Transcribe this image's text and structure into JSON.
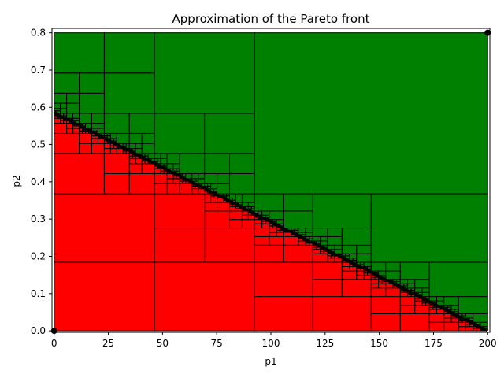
{
  "chart_data": {
    "type": "rectangle-partition",
    "title": "Approximation of the Pareto front",
    "xlabel": "p1",
    "ylabel": "p2",
    "xlim": [
      -1,
      201
    ],
    "ylim": [
      -0.004,
      0.812
    ],
    "xticks": [
      0,
      25,
      50,
      75,
      100,
      125,
      150,
      175,
      200
    ],
    "yticks": [
      0.0,
      0.1,
      0.2,
      0.3,
      0.4,
      0.5,
      0.6,
      0.7,
      0.8
    ],
    "ytick_labels": [
      "0.0",
      "0.1",
      "0.2",
      "0.3",
      "0.4",
      "0.5",
      "0.6",
      "0.7",
      "0.8"
    ],
    "domain": {
      "x": [
        0,
        200
      ],
      "y": [
        0,
        0.8
      ]
    },
    "front": {
      "x": [
        0,
        200
      ],
      "y": [
        0.585,
        0.0
      ]
    },
    "region_colors": {
      "infeasible": "#ff0000",
      "feasible": "#008000",
      "border": "#000000"
    },
    "split_point": {
      "x": 92.5,
      "y": 0.368
    },
    "points": [
      {
        "x": 0,
        "y": 0.0
      },
      {
        "x": 200,
        "y": 0.8
      }
    ]
  }
}
